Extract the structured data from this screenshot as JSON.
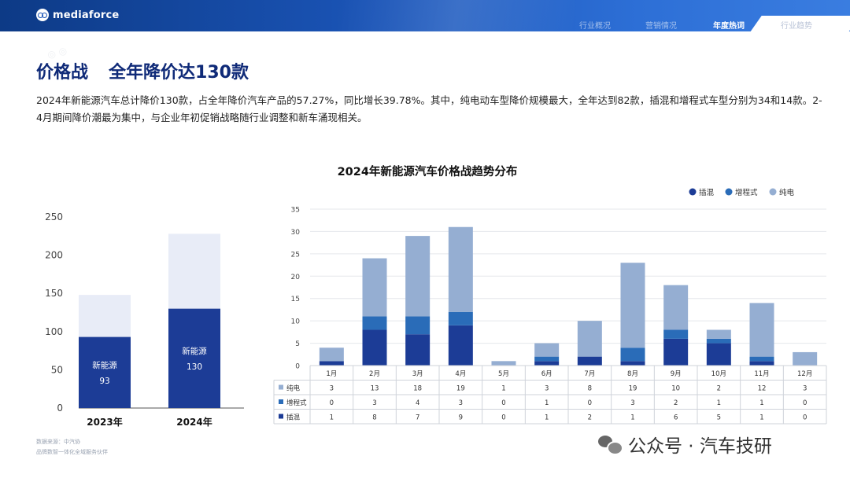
{
  "header": {
    "logo_text": "mediaforce",
    "nav": [
      "行业概况",
      "营销情况",
      "年度热词",
      "行业趋势"
    ],
    "active_index": 2,
    "colors": {
      "primary": "#0f2a78",
      "accent": "#2d6fd6"
    }
  },
  "title": {
    "part1": "价格战",
    "part2": "全年降价达130款"
  },
  "description": "2024年新能源汽车总计降价130款，占全年降价汽车产品的57.27%，同比增长39.78%。其中，纯电动车型降价规模最大，全年达到82款，插混和增程式车型分别为34和14款。2-4月期间降价潮最为集中，与企业年初促销战略随行业调整和新车涌现相关。",
  "source": {
    "line1": "数据来源：中汽协",
    "line2": "品牌数智一体化全域服务伙伴"
  },
  "watermark": "公众号 · 汽车技研",
  "chart_data": [
    {
      "type": "bar",
      "categories": [
        "2023年",
        "2024年"
      ],
      "series": [
        {
          "name": "新能源",
          "values": [
            93,
            130
          ],
          "color": "#1c3c96"
        },
        {
          "values": [
            55,
            98
          ],
          "color": "#e8ecf7"
        }
      ],
      "labels": [
        "新能源",
        "新能源"
      ],
      "ylim": [
        0,
        250
      ],
      "yticks": [
        0,
        50,
        100,
        150,
        200,
        250
      ]
    },
    {
      "type": "bar",
      "stacked": true,
      "title": "2024年新能源汽车价格战趋势分布",
      "categories": [
        "1月",
        "2月",
        "3月",
        "4月",
        "5月",
        "6月",
        "7月",
        "8月",
        "9月",
        "10月",
        "11月",
        "12月"
      ],
      "series": [
        {
          "name": "插混",
          "values": [
            1,
            8,
            7,
            9,
            0,
            1,
            2,
            1,
            6,
            5,
            1,
            0
          ],
          "color": "#1c3c96"
        },
        {
          "name": "增程式",
          "values": [
            0,
            3,
            4,
            3,
            0,
            1,
            0,
            3,
            2,
            1,
            1,
            0
          ],
          "color": "#2a6cb8"
        },
        {
          "name": "纯电",
          "values": [
            3,
            13,
            18,
            19,
            1,
            3,
            8,
            19,
            10,
            2,
            12,
            3
          ],
          "color": "#95aed2"
        }
      ],
      "table_order": [
        "纯电",
        "增程式",
        "插混"
      ],
      "ylim": [
        0,
        35
      ],
      "yticks": [
        0,
        5,
        10,
        15,
        20,
        25,
        30,
        35
      ],
      "grid": true,
      "legend": "top-right"
    }
  ]
}
